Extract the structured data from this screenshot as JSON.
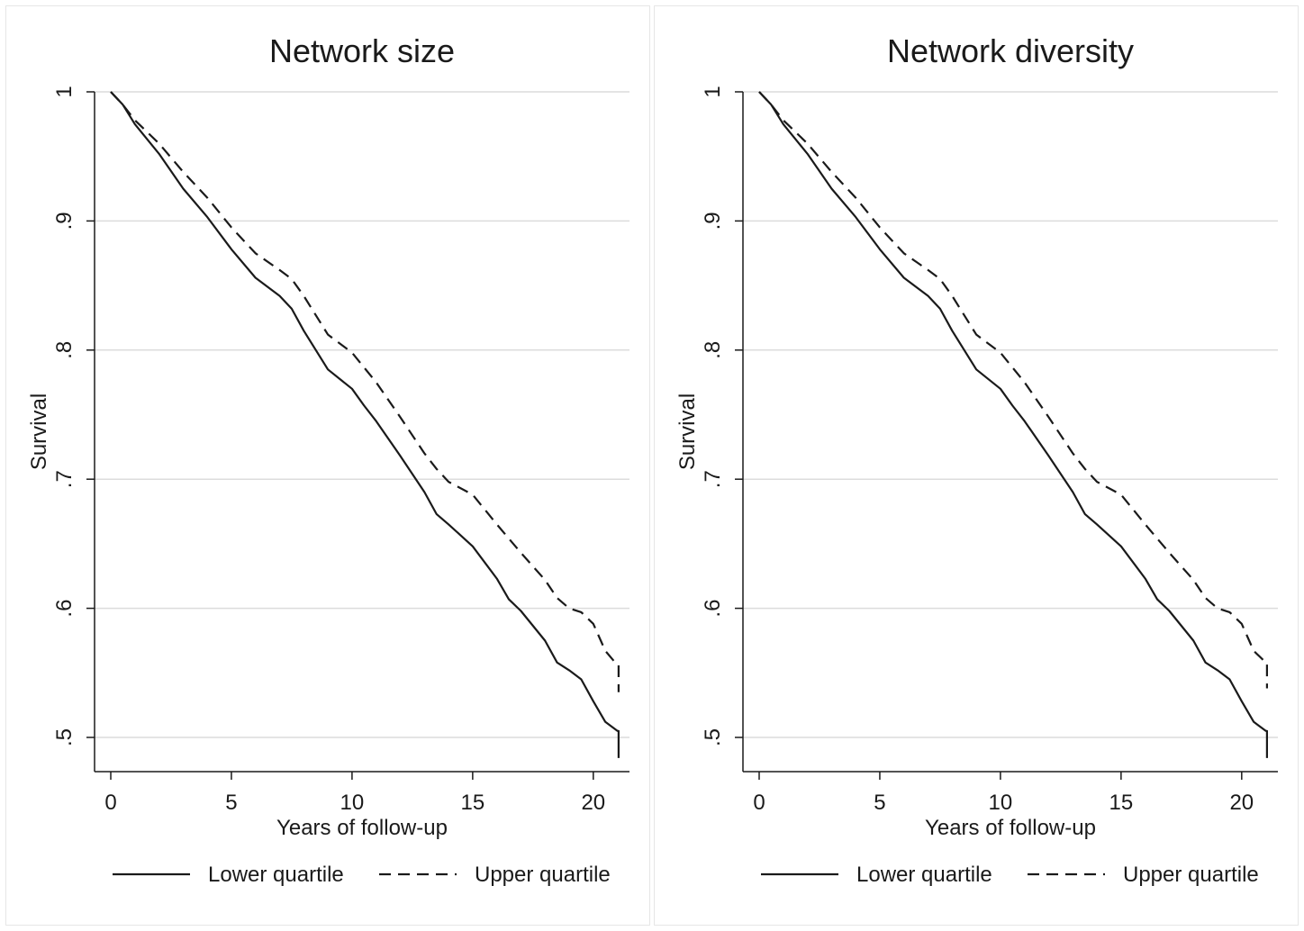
{
  "chart_data": [
    {
      "type": "line",
      "title": "Network size",
      "xlabel": "Years of follow-up",
      "ylabel": "Survival",
      "xlim": [
        0,
        21.5
      ],
      "ylim": [
        0.49,
        1.0
      ],
      "xticks": [
        0,
        5,
        10,
        15,
        20
      ],
      "xtick_labels": [
        "0",
        "5",
        "10",
        "15",
        "20"
      ],
      "yticks": [
        0.5,
        0.6,
        0.7,
        0.8,
        0.9,
        1.0
      ],
      "ytick_labels": [
        ".5",
        ".6",
        ".7",
        ".8",
        ".9",
        "1"
      ],
      "grid": true,
      "legend_position": "bottom",
      "series": [
        {
          "name": "Lower quartile",
          "style": "solid",
          "x": [
            0,
            0.5,
            1,
            2,
            3,
            4,
            5,
            6,
            7,
            7.5,
            8,
            9,
            10,
            10.5,
            11,
            12,
            13,
            13.5,
            14,
            15,
            16,
            16.5,
            17,
            18,
            18.5,
            19,
            19.5,
            20,
            20.5,
            21,
            21.05,
            21.05
          ],
          "y": [
            1.0,
            0.99,
            0.975,
            0.952,
            0.925,
            0.903,
            0.878,
            0.856,
            0.842,
            0.832,
            0.815,
            0.785,
            0.77,
            0.757,
            0.745,
            0.718,
            0.69,
            0.673,
            0.665,
            0.648,
            0.623,
            0.607,
            0.598,
            0.575,
            0.558,
            0.552,
            0.545,
            0.528,
            0.512,
            0.505,
            0.505,
            0.484
          ]
        },
        {
          "name": "Upper quartile",
          "style": "dashed",
          "x": [
            0,
            0.5,
            1,
            2,
            3,
            4,
            5,
            6,
            7,
            7.5,
            8,
            9,
            10,
            11,
            12,
            13,
            13.5,
            14,
            15,
            16,
            17,
            18,
            18.5,
            19,
            19.5,
            20,
            20.5,
            21,
            21.05,
            21.05
          ],
          "y": [
            1.0,
            0.99,
            0.978,
            0.96,
            0.938,
            0.918,
            0.895,
            0.875,
            0.862,
            0.855,
            0.842,
            0.812,
            0.798,
            0.775,
            0.748,
            0.72,
            0.708,
            0.698,
            0.688,
            0.665,
            0.643,
            0.622,
            0.608,
            0.6,
            0.597,
            0.588,
            0.567,
            0.556,
            0.556,
            0.535
          ]
        }
      ]
    },
    {
      "type": "line",
      "title": "Network diversity",
      "xlabel": "Years of follow-up",
      "ylabel": "Survival",
      "xlim": [
        0,
        21.5
      ],
      "ylim": [
        0.49,
        1.0
      ],
      "xticks": [
        0,
        5,
        10,
        15,
        20
      ],
      "xtick_labels": [
        "0",
        "5",
        "10",
        "15",
        "20"
      ],
      "yticks": [
        0.5,
        0.6,
        0.7,
        0.8,
        0.9,
        1.0
      ],
      "ytick_labels": [
        ".5",
        ".6",
        ".7",
        ".8",
        ".9",
        "1"
      ],
      "grid": true,
      "legend_position": "bottom",
      "series": [
        {
          "name": "Lower quartile",
          "style": "solid",
          "x": [
            0,
            0.5,
            1,
            2,
            3,
            4,
            5,
            6,
            7,
            7.5,
            8,
            9,
            10,
            10.5,
            11,
            12,
            13,
            13.5,
            14,
            15,
            16,
            16.5,
            17,
            18,
            18.5,
            19,
            19.5,
            20,
            20.5,
            21,
            21.05,
            21.05
          ],
          "y": [
            1.0,
            0.99,
            0.975,
            0.952,
            0.925,
            0.903,
            0.878,
            0.856,
            0.842,
            0.832,
            0.815,
            0.785,
            0.77,
            0.757,
            0.745,
            0.718,
            0.69,
            0.673,
            0.665,
            0.648,
            0.623,
            0.607,
            0.598,
            0.575,
            0.558,
            0.552,
            0.545,
            0.528,
            0.512,
            0.505,
            0.505,
            0.484
          ]
        },
        {
          "name": "Upper quartile",
          "style": "dashed",
          "x": [
            0,
            0.5,
            1,
            2,
            3,
            4,
            5,
            6,
            7,
            7.5,
            8,
            9,
            10,
            11,
            12,
            13,
            13.5,
            14,
            15,
            16,
            17,
            18,
            18.5,
            19,
            19.5,
            20,
            20.5,
            21,
            21.05,
            21.05
          ],
          "y": [
            1.0,
            0.99,
            0.978,
            0.96,
            0.938,
            0.918,
            0.895,
            0.875,
            0.862,
            0.855,
            0.842,
            0.812,
            0.798,
            0.775,
            0.748,
            0.72,
            0.708,
            0.698,
            0.688,
            0.665,
            0.643,
            0.622,
            0.608,
            0.6,
            0.597,
            0.588,
            0.567,
            0.558,
            0.558,
            0.538
          ]
        }
      ]
    }
  ]
}
